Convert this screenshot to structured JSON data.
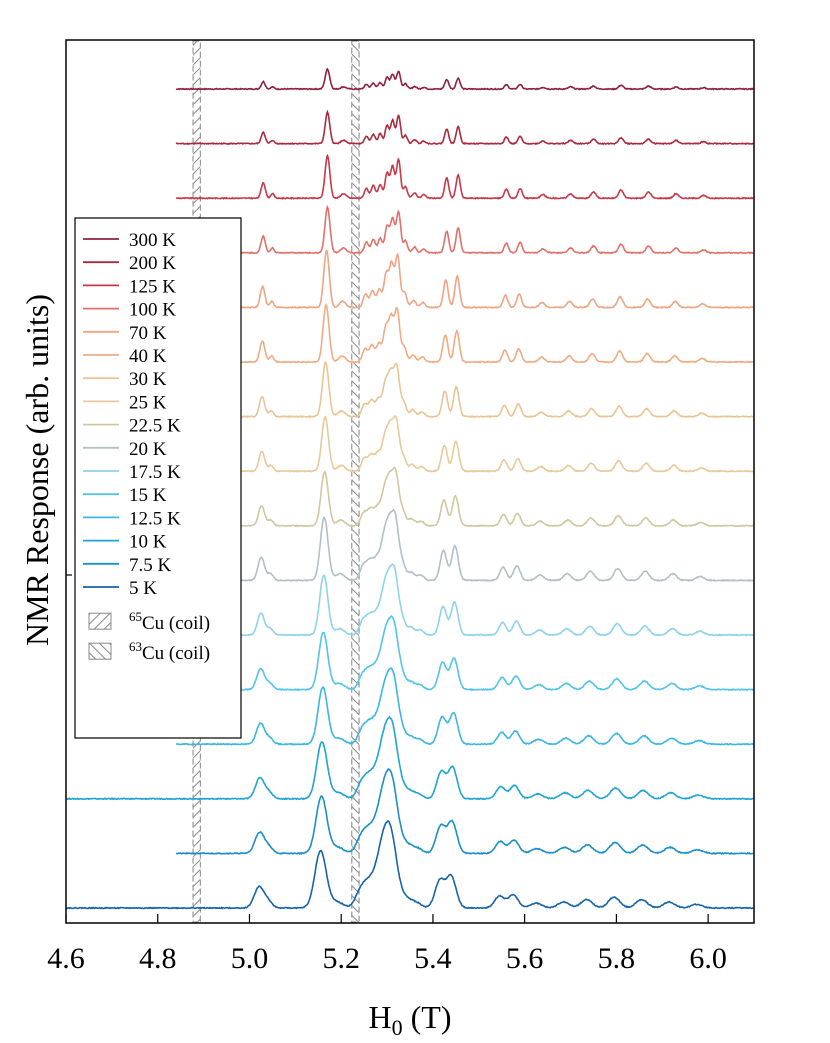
{
  "chart_data": {
    "type": "line",
    "title": "",
    "xlabel": "H",
    "xlabel_sub": "0",
    "xlabel_unit": " (T)",
    "ylabel": "NMR Response (arb. units)",
    "xlim": [
      4.6,
      6.1
    ],
    "x_ticks": [
      4.6,
      4.8,
      5.0,
      5.2,
      5.4,
      5.6,
      5.8,
      6.0
    ],
    "x_tick_labels": [
      "4.6",
      "4.8",
      "5.0",
      "5.2",
      "5.4",
      "5.6",
      "5.8",
      "6.0"
    ],
    "grid": false,
    "legend_position": "left",
    "coil_bands": [
      {
        "name": "65Cu (coil)",
        "sup": "65",
        "text": "Cu (coil)",
        "x": [
          4.877,
          4.893
        ],
        "hatch": "forward"
      },
      {
        "name": "63Cu (coil)",
        "sup": "63",
        "text": "Cu (coil)",
        "x": [
          5.223,
          5.239
        ],
        "hatch": "backward"
      }
    ],
    "series": [
      {
        "name": "300 K",
        "color": "#8f2240",
        "baseline": 0.0,
        "x_start": 4.84,
        "amp": 0.35,
        "width": 1.0,
        "shift": 0.0
      },
      {
        "name": "200 K",
        "color": "#ab2a40",
        "baseline": 1.0,
        "x_start": 4.84,
        "amp": 0.55,
        "width": 1.0,
        "shift": 0.0
      },
      {
        "name": "125 K",
        "color": "#c8384a",
        "baseline": 2.0,
        "x_start": 4.84,
        "amp": 0.75,
        "width": 1.05,
        "shift": 0.0
      },
      {
        "name": "100 K",
        "color": "#e0716a",
        "baseline": 3.0,
        "x_start": 4.84,
        "amp": 0.8,
        "width": 1.1,
        "shift": 0.0
      },
      {
        "name": "70 K",
        "color": "#eda582",
        "baseline": 4.0,
        "x_start": 4.84,
        "amp": 1.0,
        "width": 1.2,
        "shift": -0.002
      },
      {
        "name": "40 K",
        "color": "#efac83",
        "baseline": 5.0,
        "x_start": 4.84,
        "amp": 1.0,
        "width": 1.3,
        "shift": -0.003
      },
      {
        "name": "30 K",
        "color": "#e8c594",
        "baseline": 6.0,
        "x_start": 4.84,
        "amp": 0.95,
        "width": 1.4,
        "shift": -0.004
      },
      {
        "name": "25 K",
        "color": "#e8c99a",
        "baseline": 7.0,
        "x_start": 4.84,
        "amp": 0.95,
        "width": 1.5,
        "shift": -0.005
      },
      {
        "name": "22.5 K",
        "color": "#cfc8a0",
        "baseline": 8.0,
        "x_start": 4.84,
        "amp": 0.95,
        "width": 1.6,
        "shift": -0.006
      },
      {
        "name": "20 K",
        "color": "#b3bfc6",
        "baseline": 9.0,
        "x_start": 4.84,
        "amp": 1.1,
        "width": 1.7,
        "shift": -0.007
      },
      {
        "name": "17.5 K",
        "color": "#8fd3e8",
        "baseline": 10.0,
        "x_start": 4.84,
        "amp": 1.05,
        "width": 1.8,
        "shift": -0.008
      },
      {
        "name": "15 K",
        "color": "#52c3ea",
        "baseline": 11.0,
        "x_start": 4.84,
        "amp": 1.0,
        "width": 2.0,
        "shift": -0.009
      },
      {
        "name": "12.5 K",
        "color": "#3ab7e3",
        "baseline": 12.0,
        "x_start": 4.84,
        "amp": 1.0,
        "width": 2.1,
        "shift": -0.01
      },
      {
        "name": "10 K",
        "color": "#1fa4d4",
        "baseline": 13.0,
        "x_start": 4.6,
        "amp": 1.0,
        "width": 2.3,
        "shift": -0.012
      },
      {
        "name": "7.5 K",
        "color": "#1a8fc8",
        "baseline": 14.0,
        "x_start": 4.84,
        "amp": 1.0,
        "width": 2.4,
        "shift": -0.013
      },
      {
        "name": "5 K",
        "color": "#1765a6",
        "baseline": 15.0,
        "x_start": 4.6,
        "amp": 1.0,
        "width": 2.5,
        "shift": -0.015
      }
    ]
  }
}
